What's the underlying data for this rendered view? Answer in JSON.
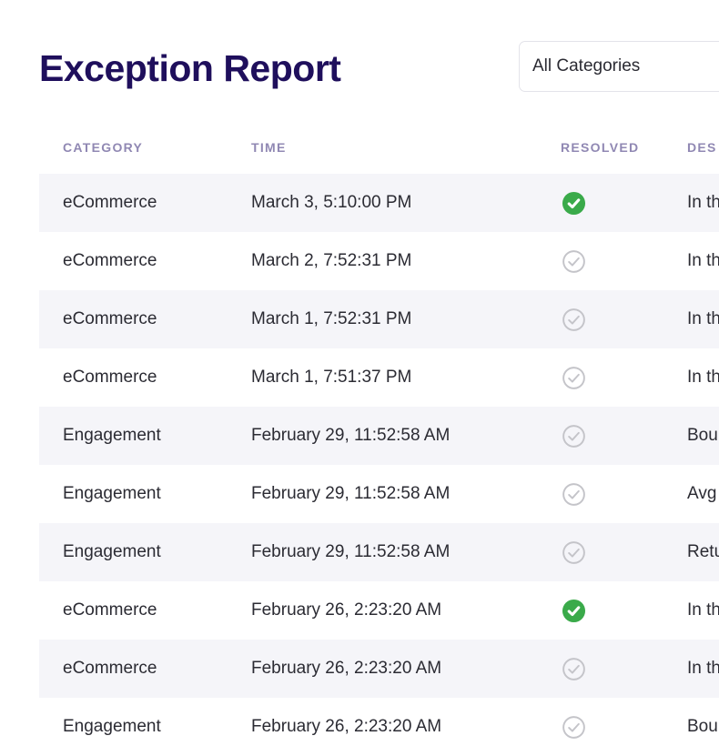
{
  "page": {
    "title": "Exception Report"
  },
  "filter": {
    "selected": "All Categories"
  },
  "table": {
    "columns": [
      "CATEGORY",
      "TIME",
      "RESOLVED",
      "DES"
    ],
    "rows": [
      {
        "category": "eCommerce",
        "time": "March 3, 5:10:00 PM",
        "resolved": true,
        "description": "In th"
      },
      {
        "category": "eCommerce",
        "time": "March 2, 7:52:31 PM",
        "resolved": false,
        "description": "In th"
      },
      {
        "category": "eCommerce",
        "time": "March 1, 7:52:31 PM",
        "resolved": false,
        "description": "In th"
      },
      {
        "category": "eCommerce",
        "time": "March 1, 7:51:37 PM",
        "resolved": false,
        "description": "In th"
      },
      {
        "category": "Engagement",
        "time": "February 29, 11:52:58 AM",
        "resolved": false,
        "description": "Bou"
      },
      {
        "category": "Engagement",
        "time": "February 29, 11:52:58 AM",
        "resolved": false,
        "description": "Avg"
      },
      {
        "category": "Engagement",
        "time": "February 29, 11:52:58 AM",
        "resolved": false,
        "description": "Retu"
      },
      {
        "category": "eCommerce",
        "time": "February 26, 2:23:20 AM",
        "resolved": true,
        "description": "In th"
      },
      {
        "category": "eCommerce",
        "time": "February 26, 2:23:20 AM",
        "resolved": false,
        "description": "In th"
      },
      {
        "category": "Engagement",
        "time": "February 26, 2:23:20 AM",
        "resolved": false,
        "description": "Bou"
      }
    ]
  },
  "icons": {
    "resolved": "check-circle-filled-icon",
    "unresolved": "check-circle-outline-icon"
  },
  "colors": {
    "title": "#1f0f5c",
    "header": "#9088b3",
    "resolved": "#3aaa4a",
    "unresolved": "#c4c4c9",
    "row_alt": "#f5f5f9"
  }
}
